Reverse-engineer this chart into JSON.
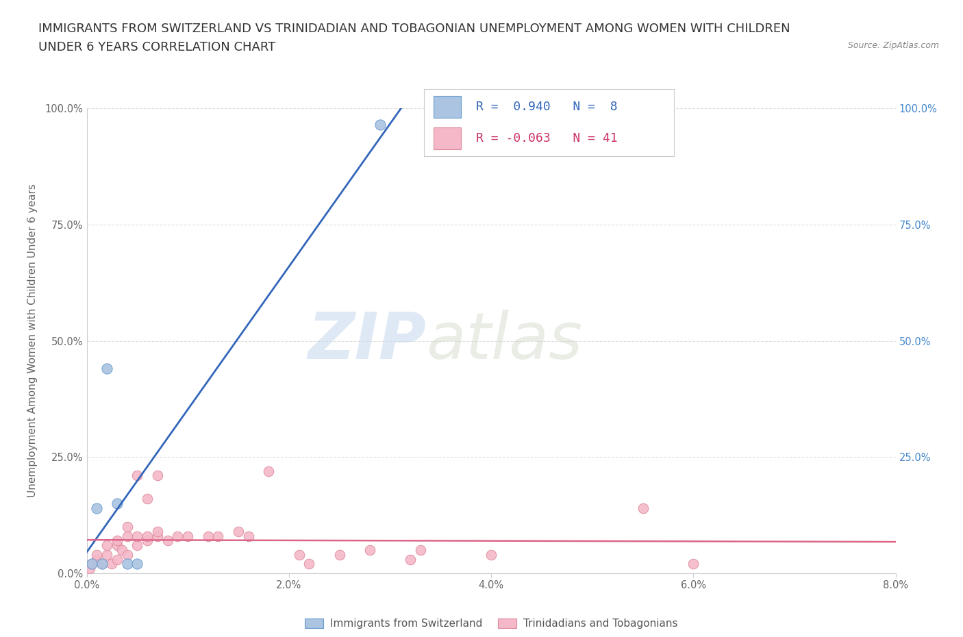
{
  "title_line1": "IMMIGRANTS FROM SWITZERLAND VS TRINIDADIAN AND TOBAGONIAN UNEMPLOYMENT AMONG WOMEN WITH CHILDREN",
  "title_line2": "UNDER 6 YEARS CORRELATION CHART",
  "source": "Source: ZipAtlas.com",
  "ylabel": "Unemployment Among Women with Children Under 6 years",
  "xlim": [
    0.0,
    0.08
  ],
  "ylim": [
    0.0,
    1.0
  ],
  "xticks": [
    0.0,
    0.02,
    0.04,
    0.06,
    0.08
  ],
  "xtick_labels": [
    "0.0%",
    "2.0%",
    "4.0%",
    "6.0%",
    "8.0%"
  ],
  "yticks_left": [
    0.0,
    0.25,
    0.5,
    0.75,
    1.0
  ],
  "ytick_labels_left": [
    "0.0%",
    "25.0%",
    "50.0%",
    "75.0%",
    "100.0%"
  ],
  "yticks_right": [
    0.25,
    0.5,
    0.75,
    1.0
  ],
  "ytick_labels_right": [
    "25.0%",
    "50.0%",
    "75.0%",
    "100.0%"
  ],
  "series1_color": "#aac4e2",
  "series1_edge": "#6699cc",
  "series1_line": "#3366bb",
  "series2_color": "#f4b8c8",
  "series2_edge": "#dd8899",
  "series2_line": "#dd6688",
  "background_color": "#ffffff",
  "grid_color": "#dddddd",
  "watermark_zip": "ZIP",
  "watermark_atlas": "atlas",
  "swiss_x": [
    0.0005,
    0.001,
    0.0015,
    0.002,
    0.003,
    0.004,
    0.005,
    0.029
  ],
  "swiss_y": [
    0.02,
    0.14,
    0.02,
    0.44,
    0.15,
    0.02,
    0.02,
    0.965
  ],
  "tnt_x": [
    0.0003,
    0.0005,
    0.001,
    0.001,
    0.0015,
    0.002,
    0.002,
    0.0025,
    0.003,
    0.003,
    0.003,
    0.0035,
    0.004,
    0.004,
    0.004,
    0.005,
    0.005,
    0.005,
    0.006,
    0.006,
    0.006,
    0.007,
    0.007,
    0.007,
    0.008,
    0.009,
    0.01,
    0.012,
    0.013,
    0.015,
    0.016,
    0.018,
    0.021,
    0.022,
    0.025,
    0.028,
    0.032,
    0.033,
    0.04,
    0.055,
    0.06
  ],
  "tnt_y": [
    0.01,
    0.02,
    0.03,
    0.04,
    0.02,
    0.04,
    0.06,
    0.02,
    0.03,
    0.06,
    0.07,
    0.05,
    0.04,
    0.08,
    0.1,
    0.06,
    0.08,
    0.21,
    0.07,
    0.08,
    0.16,
    0.08,
    0.09,
    0.21,
    0.07,
    0.08,
    0.08,
    0.08,
    0.08,
    0.09,
    0.08,
    0.22,
    0.04,
    0.02,
    0.04,
    0.05,
    0.03,
    0.05,
    0.04,
    0.14,
    0.02
  ],
  "title_fontsize": 13,
  "axis_label_fontsize": 11,
  "tick_fontsize": 10.5,
  "r1_text": "R =  0.940   N =  8",
  "r2_text": "R = -0.063   N = 41",
  "r_color1": "#3366bb",
  "r_color2": "#cc3366",
  "legend1": "Immigrants from Switzerland",
  "legend2": "Trinidadians and Tobagonians"
}
